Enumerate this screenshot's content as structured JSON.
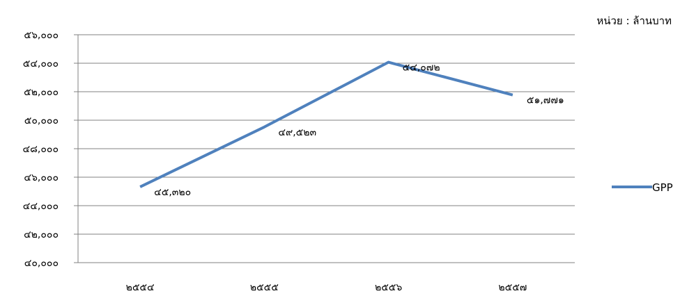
{
  "unit_label": "หน่วย : ล้านบาท",
  "chart_data": {
    "type": "line",
    "categories": [
      "๒๕๕๔",
      "๒๕๕๕",
      "๒๕๕๖",
      "๒๕๕๗"
    ],
    "series": [
      {
        "name": "GPP",
        "values": [
          45320,
          49523,
          54072,
          51771
        ],
        "color": "#4f81bd"
      }
    ],
    "data_labels": [
      "๔๕,๓๒๐",
      "๔๙,๕๒๓",
      "๕๔,๐๗๒",
      "๕๑,๗๗๑"
    ],
    "ylim": [
      40000,
      56000
    ],
    "y_ticks": [
      40000,
      42000,
      44000,
      46000,
      48000,
      50000,
      52000,
      54000,
      56000
    ],
    "y_tick_labels": [
      "๔๐,๐๐๐",
      "๔๒,๐๐๐",
      "๔๔,๐๐๐",
      "๔๖,๐๐๐",
      "๔๘,๐๐๐",
      "๕๐,๐๐๐",
      "๕๒,๐๐๐",
      "๕๔,๐๐๐",
      "๕๖,๐๐๐"
    ],
    "grid": true,
    "legend": {
      "position": "right",
      "label": "GPP"
    }
  }
}
